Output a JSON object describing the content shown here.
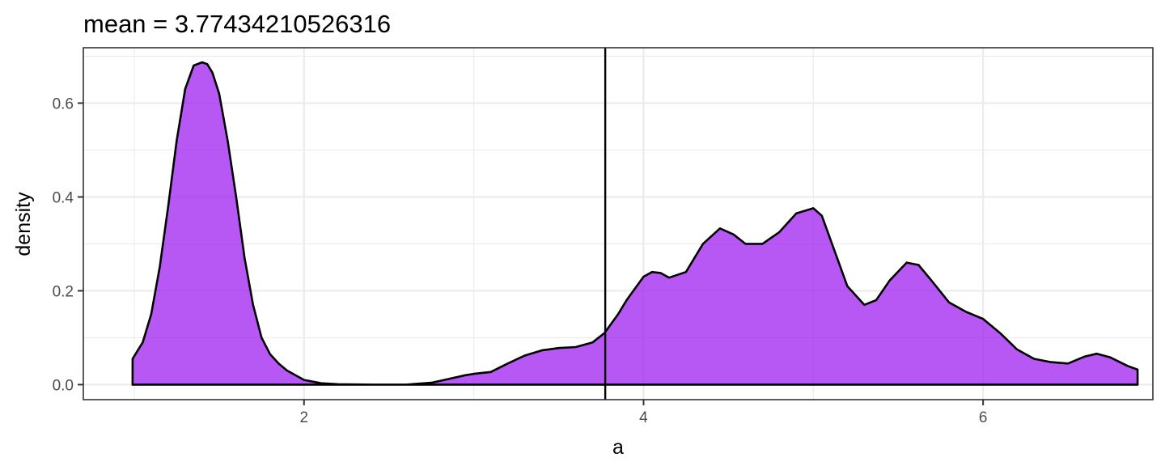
{
  "chart_data": {
    "type": "area",
    "title": "mean = 3.77434210526316",
    "xlabel": "a",
    "ylabel": "density",
    "xlim": [
      0.7,
      7.0
    ],
    "ylim": [
      -0.032,
      0.718
    ],
    "x_ticks": [
      2,
      4,
      6
    ],
    "x_tick_labels": [
      "2",
      "4",
      "6"
    ],
    "y_ticks": [
      0.0,
      0.2,
      0.4,
      0.6
    ],
    "y_tick_labels": [
      "0.0",
      "0.2",
      "0.4",
      "0.6"
    ],
    "grid": true,
    "fill_color": "#a020f0",
    "fill_opacity": 0.75,
    "line_color": "#000000",
    "mean": 3.77434210526316,
    "series": [
      {
        "x": [
          0.99,
          1.05,
          1.1,
          1.15,
          1.2,
          1.25,
          1.3,
          1.35,
          1.4,
          1.43,
          1.46,
          1.5,
          1.55,
          1.6,
          1.65,
          1.7,
          1.75,
          1.8,
          1.85,
          1.9,
          2.0,
          2.1,
          2.2,
          2.4,
          2.6,
          2.75,
          2.85,
          2.95,
          3.0,
          3.1,
          3.2,
          3.3,
          3.4,
          3.5,
          3.6,
          3.7,
          3.77,
          3.85,
          3.9,
          4.0,
          4.05,
          4.1,
          4.15,
          4.25,
          4.35,
          4.45,
          4.53,
          4.6,
          4.7,
          4.8,
          4.9,
          5.0,
          5.05,
          5.1,
          5.2,
          5.3,
          5.37,
          5.45,
          5.55,
          5.62,
          5.7,
          5.8,
          5.9,
          6.0,
          6.1,
          6.2,
          6.3,
          6.4,
          6.5,
          6.6,
          6.67,
          6.75,
          6.85,
          6.91
        ],
        "y": [
          0.055,
          0.09,
          0.15,
          0.25,
          0.38,
          0.52,
          0.63,
          0.68,
          0.687,
          0.683,
          0.665,
          0.62,
          0.52,
          0.4,
          0.27,
          0.17,
          0.1,
          0.065,
          0.045,
          0.03,
          0.01,
          0.003,
          0.001,
          0.0,
          0.0,
          0.004,
          0.012,
          0.02,
          0.023,
          0.027,
          0.045,
          0.062,
          0.073,
          0.078,
          0.08,
          0.09,
          0.11,
          0.15,
          0.18,
          0.23,
          0.24,
          0.238,
          0.228,
          0.24,
          0.3,
          0.333,
          0.32,
          0.3,
          0.3,
          0.325,
          0.365,
          0.376,
          0.36,
          0.31,
          0.21,
          0.17,
          0.18,
          0.222,
          0.26,
          0.255,
          0.22,
          0.175,
          0.155,
          0.14,
          0.11,
          0.075,
          0.055,
          0.048,
          0.045,
          0.06,
          0.066,
          0.058,
          0.04,
          0.032
        ]
      }
    ]
  }
}
